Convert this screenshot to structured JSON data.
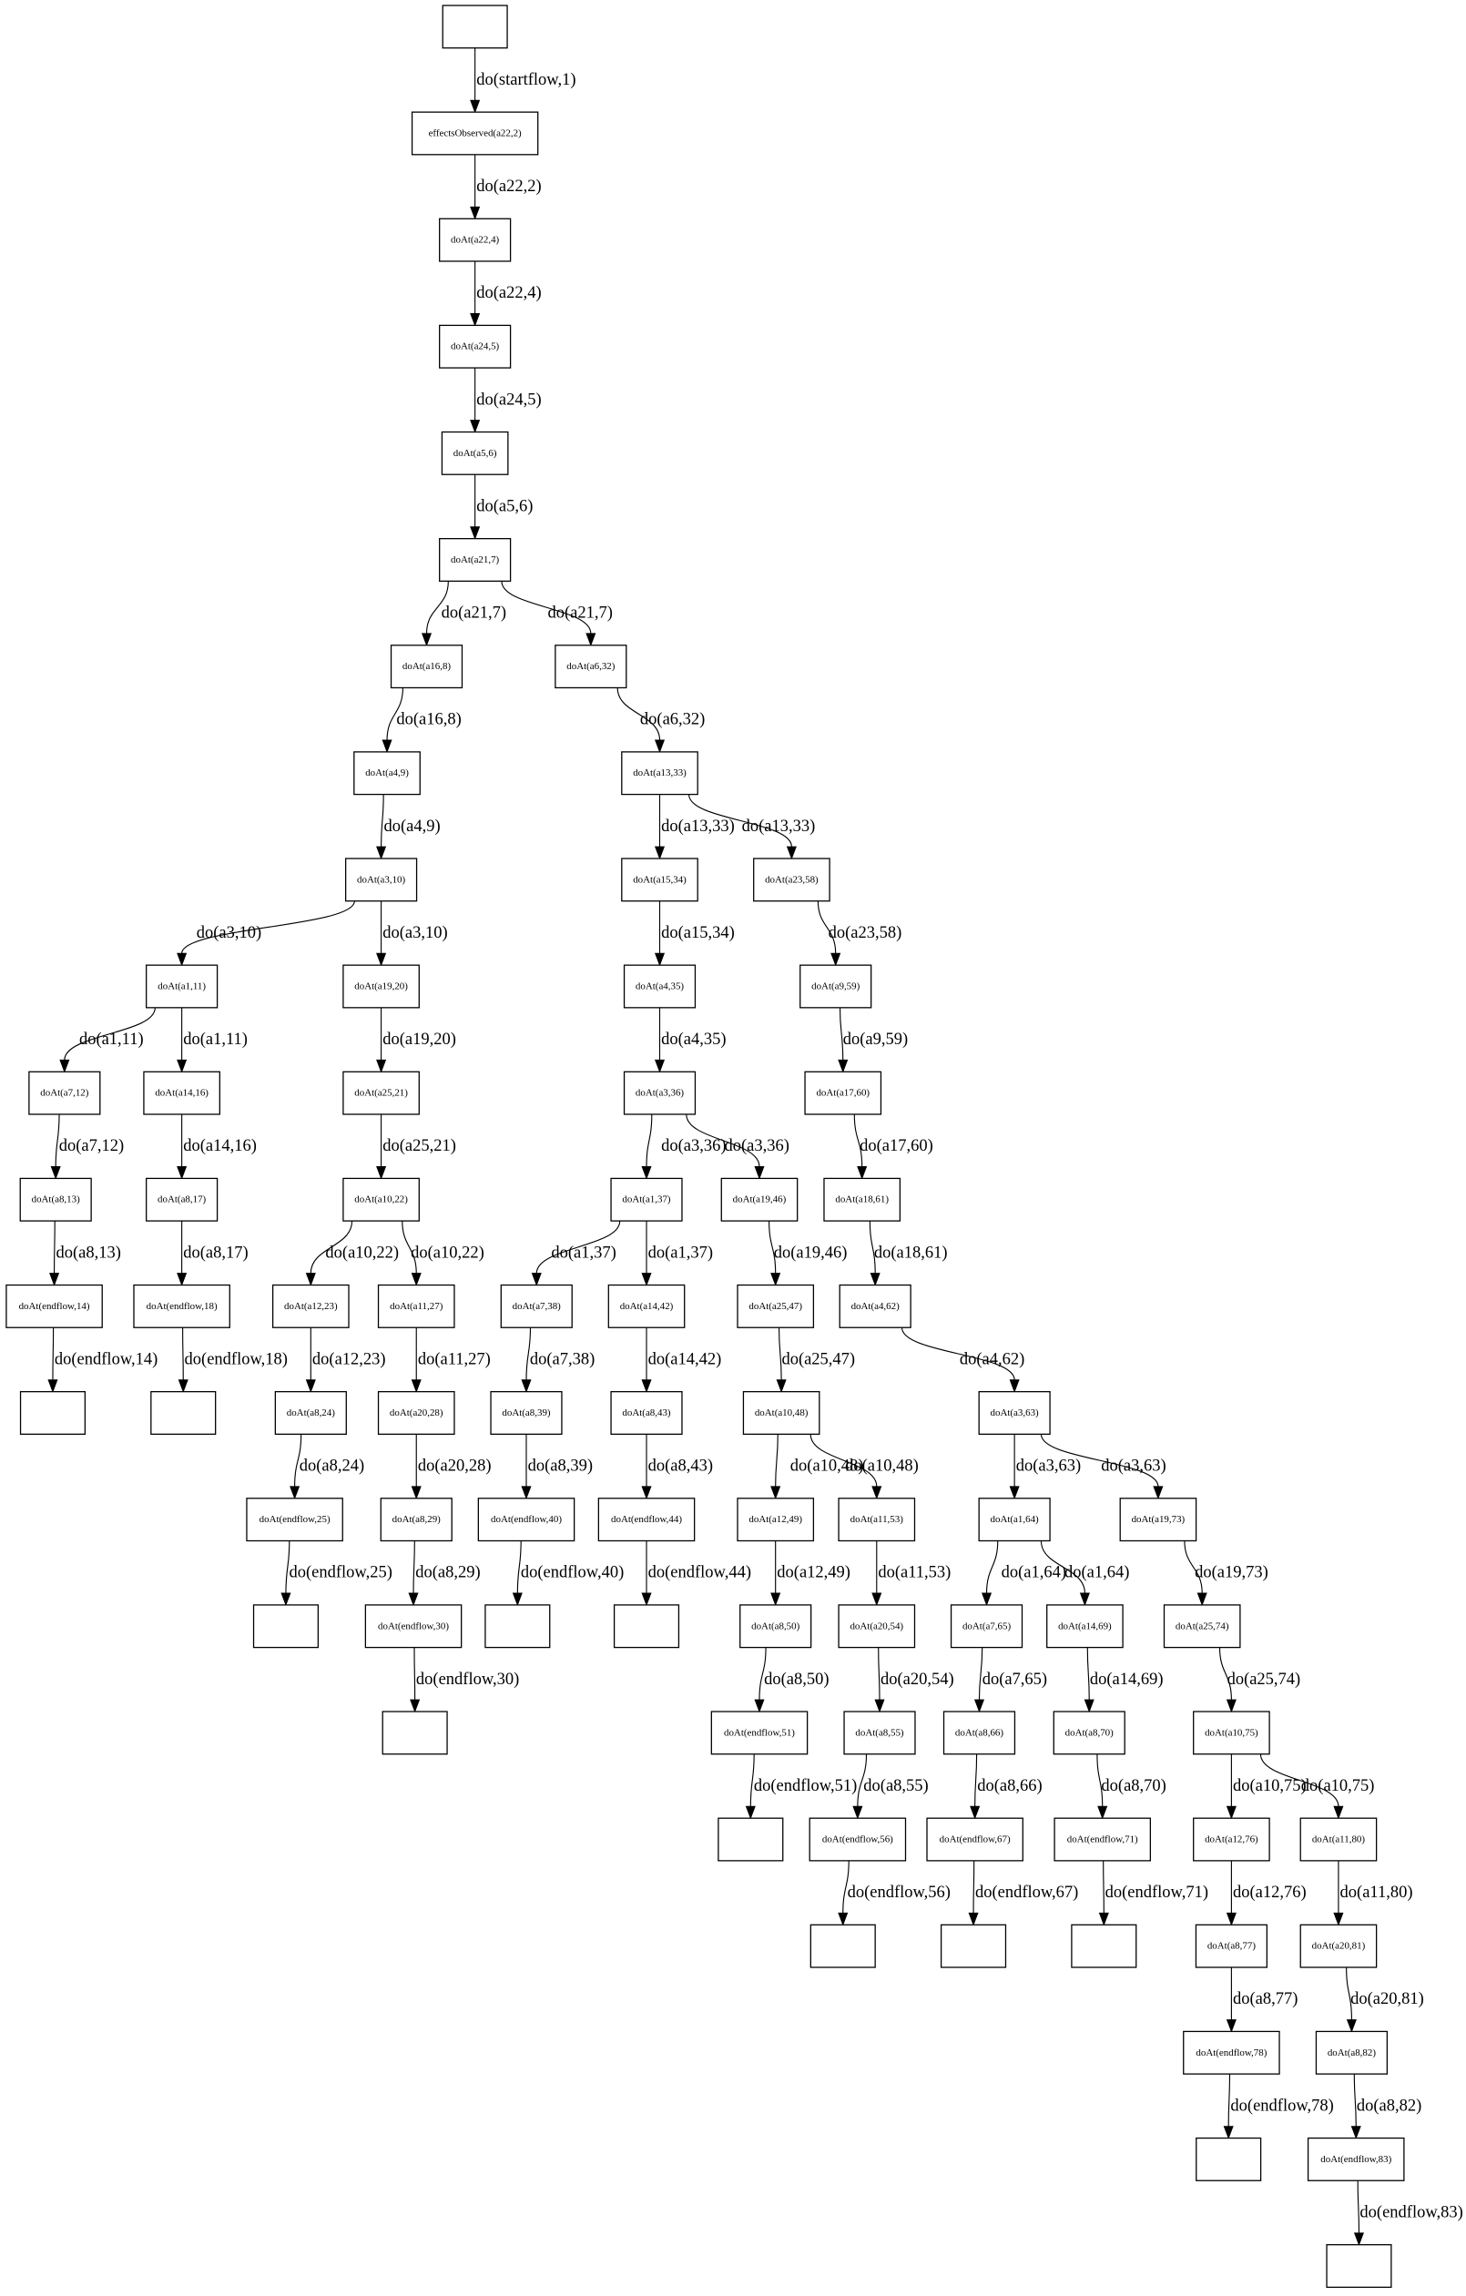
{
  "diagram": {
    "type": "tree",
    "nodes": [
      "",
      "effectsObserved(a22,2)",
      "doAt(a22,4)",
      "doAt(a24,5)",
      "doAt(a5,6)",
      "doAt(a21,7)",
      "doAt(a16,8)",
      "doAt(a6,32)",
      "doAt(a4,9)",
      "doAt(a13,33)",
      "doAt(a3,10)",
      "doAt(a15,34)",
      "doAt(a23,58)",
      "doAt(a1,11)",
      "doAt(a19,20)",
      "doAt(a4,35)",
      "doAt(a9,59)",
      "doAt(a7,12)",
      "doAt(a14,16)",
      "doAt(a25,21)",
      "doAt(a3,36)",
      "doAt(a17,60)",
      "doAt(a8,13)",
      "doAt(a8,17)",
      "doAt(a10,22)",
      "doAt(a1,37)",
      "doAt(a19,46)",
      "doAt(a18,61)",
      "doAt(endflow,14)",
      "doAt(endflow,18)",
      "doAt(a12,23)",
      "doAt(a11,27)",
      "doAt(a7,38)",
      "doAt(a14,42)",
      "doAt(a25,47)",
      "doAt(a4,62)",
      "",
      "",
      "doAt(a8,24)",
      "doAt(a20,28)",
      "doAt(a8,39)",
      "doAt(a8,43)",
      "doAt(a10,48)",
      "doAt(a3,63)",
      "doAt(endflow,25)",
      "doAt(a8,29)",
      "doAt(endflow,40)",
      "doAt(endflow,44)",
      "doAt(a12,49)",
      "doAt(a11,53)",
      "doAt(a1,64)",
      "doAt(a19,73)",
      "",
      "doAt(endflow,30)",
      "",
      "",
      "doAt(a8,50)",
      "doAt(a20,54)",
      "doAt(a7,65)",
      "doAt(a14,69)",
      "doAt(a25,74)",
      "",
      "doAt(endflow,51)",
      "doAt(a8,55)",
      "doAt(a8,66)",
      "doAt(a8,70)",
      "doAt(a10,75)",
      "",
      "doAt(endflow,56)",
      "doAt(endflow,67)",
      "doAt(endflow,71)",
      "doAt(a12,76)",
      "doAt(a11,80)",
      "",
      "",
      "",
      "doAt(a8,77)",
      "doAt(a20,81)",
      "doAt(endflow,78)",
      "doAt(a8,82)",
      "",
      "doAt(endflow,83)",
      ""
    ],
    "edges": [
      [
        0,
        1,
        "do(startflow,1)"
      ],
      [
        1,
        2,
        "do(a22,2)"
      ],
      [
        2,
        3,
        "do(a22,4)"
      ],
      [
        3,
        4,
        "do(a24,5)"
      ],
      [
        4,
        5,
        "do(a5,6)"
      ],
      [
        5,
        6,
        "do(a21,7)"
      ],
      [
        5,
        7,
        "do(a21,7)"
      ],
      [
        6,
        8,
        "do(a16,8)"
      ],
      [
        7,
        9,
        "do(a6,32)"
      ],
      [
        8,
        10,
        "do(a4,9)"
      ],
      [
        9,
        11,
        "do(a13,33)"
      ],
      [
        9,
        12,
        "do(a13,33)"
      ],
      [
        10,
        13,
        "do(a3,10)"
      ],
      [
        10,
        14,
        "do(a3,10)"
      ],
      [
        11,
        15,
        "do(a15,34)"
      ],
      [
        12,
        16,
        "do(a23,58)"
      ],
      [
        13,
        17,
        "do(a1,11)"
      ],
      [
        13,
        18,
        "do(a1,11)"
      ],
      [
        14,
        19,
        "do(a19,20)"
      ],
      [
        15,
        20,
        "do(a4,35)"
      ],
      [
        16,
        21,
        "do(a9,59)"
      ],
      [
        17,
        22,
        "do(a7,12)"
      ],
      [
        18,
        23,
        "do(a14,16)"
      ],
      [
        19,
        24,
        "do(a25,21)"
      ],
      [
        20,
        25,
        "do(a3,36)"
      ],
      [
        20,
        26,
        "do(a3,36)"
      ],
      [
        21,
        27,
        "do(a17,60)"
      ],
      [
        22,
        28,
        "do(a8,13)"
      ],
      [
        23,
        29,
        "do(a8,17)"
      ],
      [
        24,
        30,
        "do(a10,22)"
      ],
      [
        24,
        31,
        "do(a10,22)"
      ],
      [
        25,
        32,
        "do(a1,37)"
      ],
      [
        25,
        33,
        "do(a1,37)"
      ],
      [
        26,
        34,
        "do(a19,46)"
      ],
      [
        27,
        35,
        "do(a18,61)"
      ],
      [
        28,
        36,
        "do(endflow,14)"
      ],
      [
        29,
        37,
        "do(endflow,18)"
      ],
      [
        30,
        38,
        "do(a12,23)"
      ],
      [
        31,
        39,
        "do(a11,27)"
      ],
      [
        32,
        40,
        "do(a7,38)"
      ],
      [
        33,
        41,
        "do(a14,42)"
      ],
      [
        34,
        42,
        "do(a25,47)"
      ],
      [
        35,
        43,
        "do(a4,62)"
      ],
      [
        38,
        44,
        "do(a8,24)"
      ],
      [
        39,
        45,
        "do(a20,28)"
      ],
      [
        40,
        46,
        "do(a8,39)"
      ],
      [
        41,
        47,
        "do(a8,43)"
      ],
      [
        42,
        48,
        "do(a10,48)"
      ],
      [
        42,
        49,
        "do(a10,48)"
      ],
      [
        43,
        50,
        "do(a3,63)"
      ],
      [
        43,
        51,
        "do(a3,63)"
      ],
      [
        44,
        52,
        "do(endflow,25)"
      ],
      [
        45,
        53,
        "do(a8,29)"
      ],
      [
        46,
        54,
        "do(endflow,40)"
      ],
      [
        47,
        55,
        "do(endflow,44)"
      ],
      [
        48,
        56,
        "do(a12,49)"
      ],
      [
        49,
        57,
        "do(a11,53)"
      ],
      [
        50,
        58,
        "do(a1,64)"
      ],
      [
        50,
        59,
        "do(a1,64)"
      ],
      [
        51,
        60,
        "do(a19,73)"
      ],
      [
        53,
        61,
        "do(endflow,30)"
      ],
      [
        56,
        62,
        "do(a8,50)"
      ],
      [
        57,
        63,
        "do(a20,54)"
      ],
      [
        58,
        64,
        "do(a7,65)"
      ],
      [
        59,
        65,
        "do(a14,69)"
      ],
      [
        60,
        66,
        "do(a25,74)"
      ],
      [
        62,
        67,
        "do(endflow,51)"
      ],
      [
        63,
        68,
        "do(a8,55)"
      ],
      [
        64,
        69,
        "do(a8,66)"
      ],
      [
        65,
        70,
        "do(a8,70)"
      ],
      [
        66,
        71,
        "do(a10,75)"
      ],
      [
        66,
        72,
        "do(a10,75)"
      ],
      [
        68,
        73,
        "do(endflow,56)"
      ],
      [
        69,
        74,
        "do(endflow,67)"
      ],
      [
        70,
        75,
        "do(endflow,71)"
      ],
      [
        71,
        76,
        "do(a12,76)"
      ],
      [
        72,
        77,
        "do(a11,80)"
      ],
      [
        76,
        78,
        "do(a8,77)"
      ],
      [
        77,
        79,
        "do(a20,81)"
      ],
      [
        78,
        80,
        "do(endflow,78)"
      ],
      [
        79,
        81,
        "do(a8,82)"
      ],
      [
        81,
        82,
        "do(endflow,83)"
      ]
    ]
  }
}
